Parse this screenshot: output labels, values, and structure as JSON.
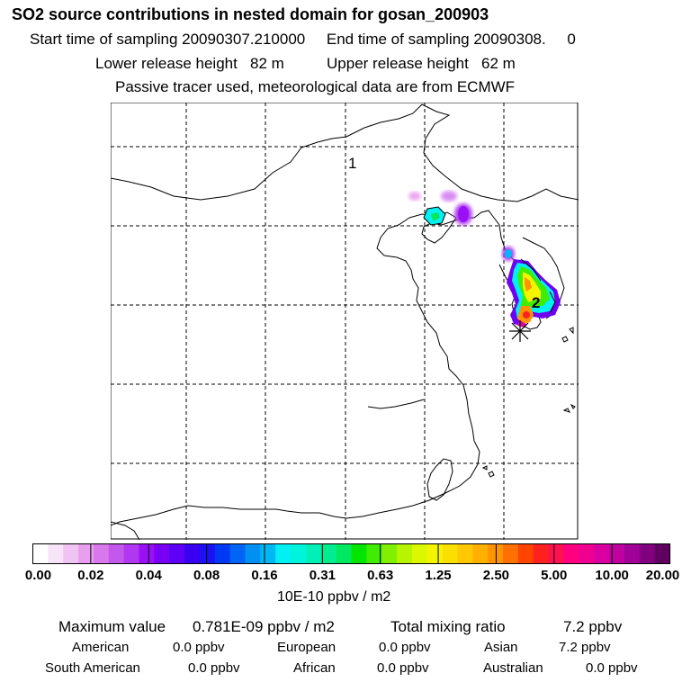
{
  "header": {
    "title": "SO2 source contributions in nested domain for gosan_200903",
    "start_label": "Start time of sampling",
    "start_value": "20090307.210000",
    "end_label": "End time of sampling",
    "end_value": "20090308.",
    "end_hour": "0",
    "lower_label": "Lower release height",
    "lower_value": "82 m",
    "upper_label": "Upper release height",
    "upper_value": "62 m",
    "note": "Passive tracer used, meteorological data are from ECMWF"
  },
  "map": {
    "markers": [
      {
        "label": "2"
      },
      {
        "label": "1"
      }
    ],
    "receptor_symbol": "asterisk",
    "grid": "dashed"
  },
  "colorbar": {
    "ticks": [
      "0.00",
      "0.02",
      "0.04",
      "0.08",
      "0.16",
      "0.31",
      "0.63",
      "1.25",
      "2.50",
      "5.00",
      "10.00",
      "20.00"
    ],
    "colors": [
      "#ffffff",
      "#f8e4f8",
      "#f0c4f2",
      "#e8a0ee",
      "#d878ec",
      "#c458ec",
      "#b038f0",
      "#9a10f6",
      "#7800f4",
      "#5c00f6",
      "#3a00f2",
      "#1c10f4",
      "#0038f4",
      "#0064f4",
      "#0090f4",
      "#00b8f4",
      "#00f0f4",
      "#00f4dc",
      "#00f0b8",
      "#00ec90",
      "#00e860",
      "#00e600",
      "#40ec00",
      "#80f000",
      "#b8f400",
      "#dcf800",
      "#f4f400",
      "#fae000",
      "#ffc800",
      "#ffb000",
      "#ff9400",
      "#ff7000",
      "#ff4400",
      "#ff2020",
      "#ff1050",
      "#ff0080",
      "#f00090",
      "#d800a0",
      "#c000a0",
      "#a00098",
      "#800080",
      "#600060"
    ],
    "units": "10E-10 ppbv / m2"
  },
  "stats": {
    "max_label": "Maximum value",
    "max_value": "0.781E-09 ppbv / m2",
    "total_label": "Total mixing ratio",
    "total_value": "7.2 ppbv",
    "sources": [
      {
        "name": "American",
        "value": "0.0 ppbv"
      },
      {
        "name": "European",
        "value": "0.0 ppbv"
      },
      {
        "name": "Asian",
        "value": "7.2 ppbv"
      },
      {
        "name": "South American",
        "value": "0.0 ppbv"
      },
      {
        "name": "African",
        "value": "0.0 ppbv"
      },
      {
        "name": "Australian",
        "value": "0.0 ppbv"
      }
    ]
  }
}
